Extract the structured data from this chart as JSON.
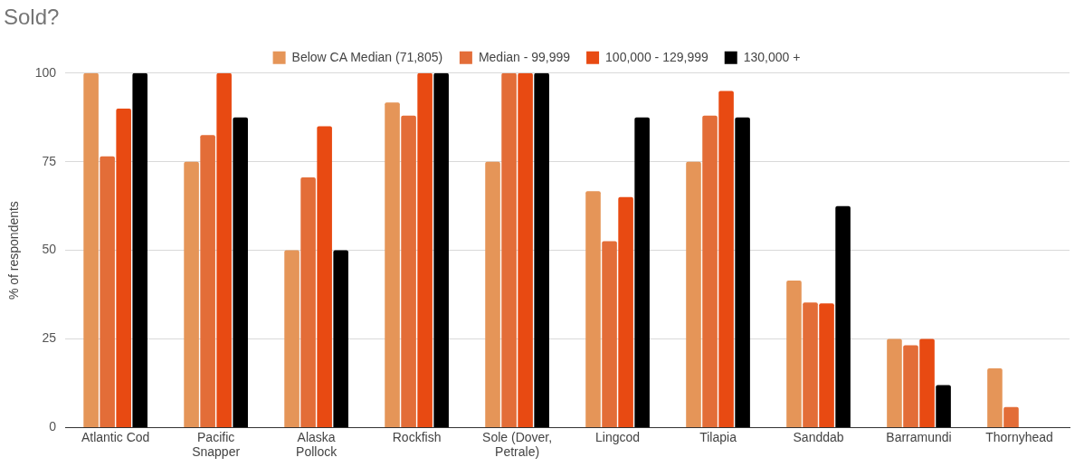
{
  "chart_data": {
    "type": "bar",
    "title": "Sold?",
    "ylabel": "% of respondents",
    "categories": [
      "Atlantic Cod",
      "Pacific Snapper",
      "Alaska Pollock",
      "Rockfish",
      "Sole (Dover, Petrale)",
      "Lingcod",
      "Tilapia",
      "Sanddab",
      "Barramundi",
      "Thornyhead"
    ],
    "series": [
      {
        "name": "Below CA Median (71,805)",
        "color": "#e59558",
        "values": [
          100,
          75,
          50,
          91.7,
          75,
          66.7,
          75,
          41.5,
          25,
          16.7
        ]
      },
      {
        "name": "Median - 99,999",
        "color": "#e36d38",
        "values": [
          76.5,
          82.5,
          70.6,
          88,
          100,
          52.6,
          88,
          35.3,
          23.2,
          5.8
        ]
      },
      {
        "name": "100,000 - 129,999",
        "color": "#e84a12",
        "values": [
          90,
          100,
          85,
          100,
          100,
          65,
          95,
          35,
          25,
          null
        ]
      },
      {
        "name": "130,000 +",
        "color": "#000000",
        "values": [
          100,
          87.5,
          50,
          100,
          100,
          87.5,
          87.5,
          62.5,
          12,
          null
        ]
      }
    ],
    "ylim": [
      0,
      100
    ],
    "yticks": [
      0,
      25,
      50,
      75,
      100
    ],
    "grid": "y",
    "legend": "top"
  }
}
